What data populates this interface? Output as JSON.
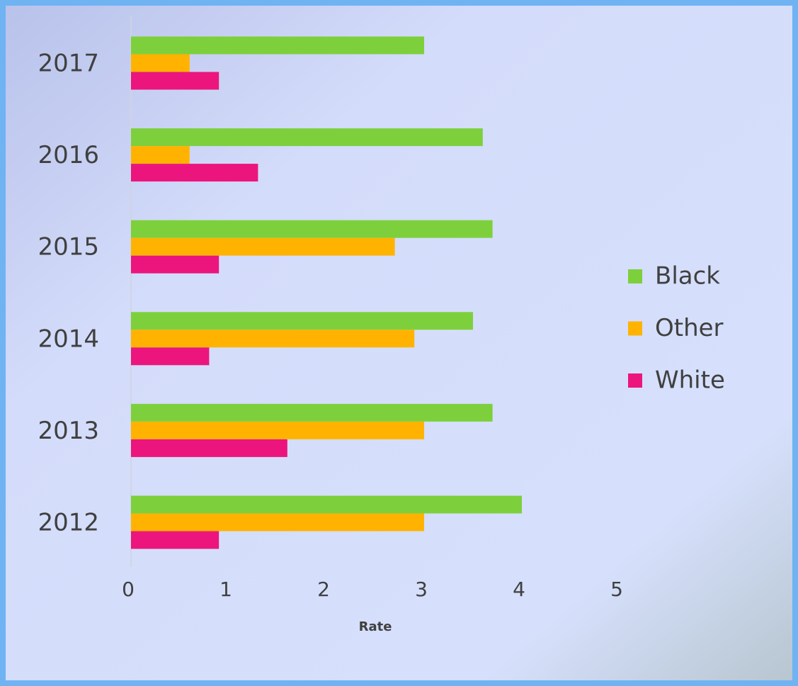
{
  "chart_data": {
    "type": "bar",
    "orientation": "horizontal",
    "categories": [
      "2017",
      "2016",
      "2015",
      "2014",
      "2013",
      "2012"
    ],
    "series": [
      {
        "name": "Black",
        "color": "#7dd03c",
        "values": [
          3.0,
          3.6,
          3.7,
          3.5,
          3.7,
          4.0
        ]
      },
      {
        "name": "Other",
        "color": "#ffb300",
        "values": [
          0.6,
          0.6,
          2.7,
          2.9,
          3.0,
          3.0
        ]
      },
      {
        "name": "White",
        "color": "#ec157d",
        "values": [
          0.9,
          1.3,
          0.9,
          0.8,
          1.6,
          0.9
        ]
      }
    ],
    "xlabel": "Rate",
    "xlim": [
      0,
      5
    ],
    "xticks": [
      0,
      1,
      2,
      3,
      4,
      5
    ],
    "grid": false,
    "legend": "right"
  }
}
